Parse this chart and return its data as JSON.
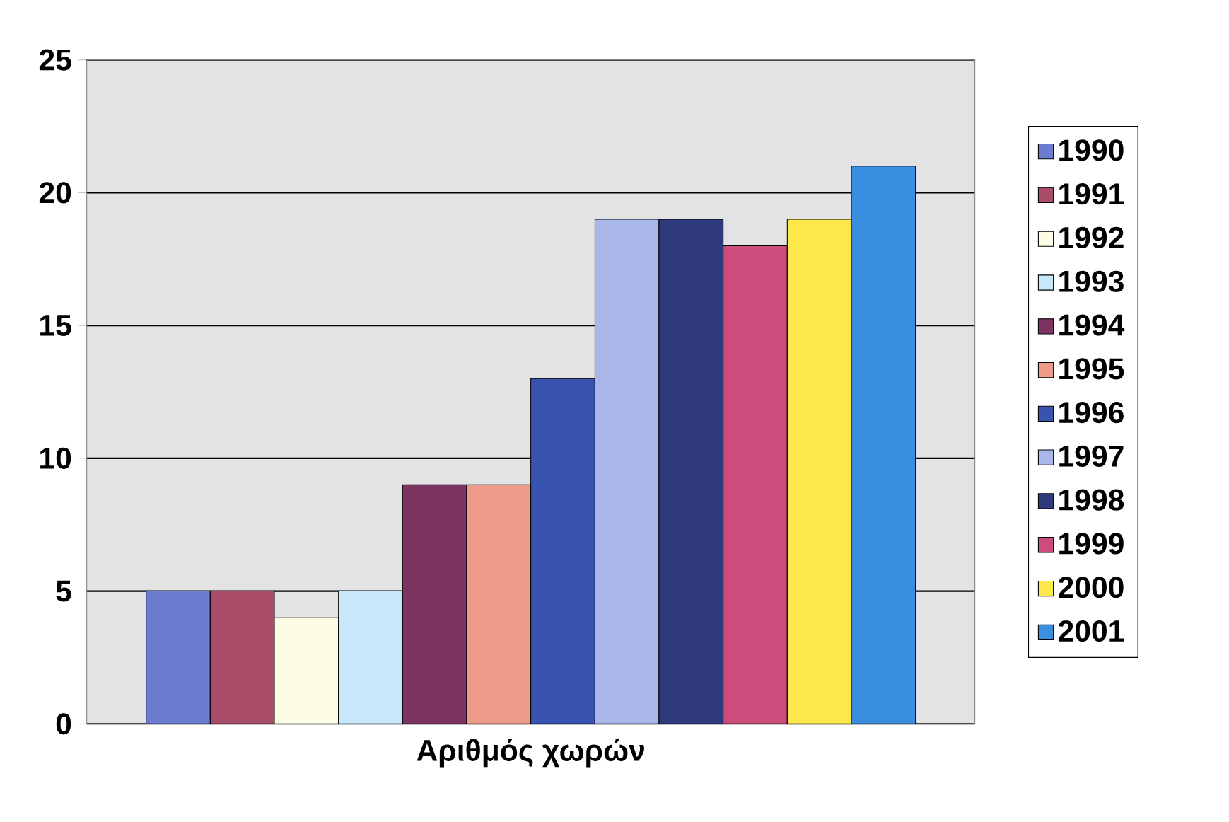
{
  "chart_data": {
    "type": "bar",
    "categories": [
      "Αριθμός χωρών"
    ],
    "series": [
      {
        "name": "1990",
        "color": "#6b7bd0",
        "values": [
          5
        ]
      },
      {
        "name": "1991",
        "color": "#a84c68",
        "values": [
          5
        ]
      },
      {
        "name": "1992",
        "color": "#fdfde6",
        "values": [
          4
        ]
      },
      {
        "name": "1993",
        "color": "#c6e8f8",
        "values": [
          5
        ]
      },
      {
        "name": "1994",
        "color": "#7e3462",
        "values": [
          9
        ]
      },
      {
        "name": "1995",
        "color": "#ee9c8a",
        "values": [
          9
        ]
      },
      {
        "name": "1996",
        "color": "#3854b0",
        "values": [
          13
        ]
      },
      {
        "name": "1997",
        "color": "#a8b6ea",
        "values": [
          19
        ]
      },
      {
        "name": "1998",
        "color": "#2e3a7c",
        "values": [
          19
        ]
      },
      {
        "name": "1999",
        "color": "#cc4c7c",
        "values": [
          18
        ]
      },
      {
        "name": "2000",
        "color": "#fde84c",
        "values": [
          19
        ]
      },
      {
        "name": "2001",
        "color": "#3a8ee0",
        "values": [
          21
        ]
      }
    ],
    "ylim": [
      0,
      25
    ],
    "yticks": [
      0,
      5,
      10,
      15,
      20,
      25
    ],
    "grid": "y",
    "legend": "right"
  }
}
